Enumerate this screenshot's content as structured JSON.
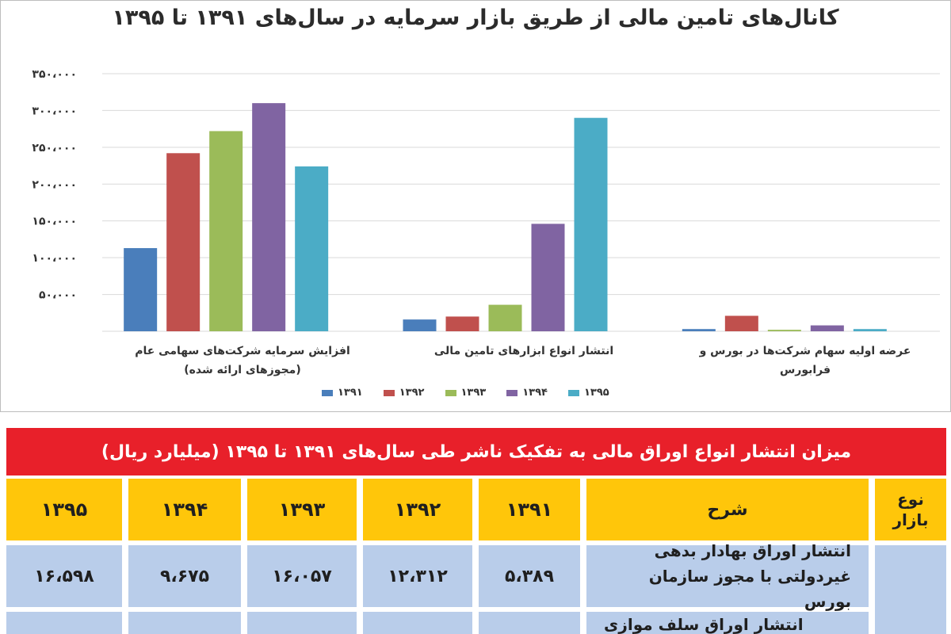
{
  "chart_data": {
    "type": "bar",
    "title": "کانال‌های تامین مالی از طریق بازار سرمایه در سال‌های ۱۳۹۱ تا ۱۳۹۵",
    "categories": [
      "افزایش  سرمایه شرکت‌های سهامی عام (مجوزهای ارائه شده)",
      "انتشار انواع ابزارهای تامین مالی",
      "عرضه اولیه سهام شرکت‌ها در بورس و فرابورس"
    ],
    "series": [
      {
        "name": "۱۳۹۱",
        "color": "#4a7ebb",
        "values": [
          113000,
          16000,
          3000
        ]
      },
      {
        "name": "۱۳۹۲",
        "color": "#c0504d",
        "values": [
          242000,
          20000,
          21000
        ]
      },
      {
        "name": "۱۳۹۳",
        "color": "#9bbb59",
        "values": [
          272000,
          36000,
          2000
        ]
      },
      {
        "name": "۱۳۹۴",
        "color": "#8064a2",
        "values": [
          310000,
          146000,
          8000
        ]
      },
      {
        "name": "۱۳۹۵",
        "color": "#4bacc6",
        "values": [
          224000,
          290000,
          3000
        ]
      }
    ],
    "ylim": [
      0,
      350000
    ],
    "yticks": [
      0,
      50000,
      100000,
      150000,
      200000,
      250000,
      300000,
      350000
    ],
    "ytick_labels": [
      "",
      "۵۰،۰۰۰",
      "۱۰۰،۰۰۰",
      "۱۵۰،۰۰۰",
      "۲۰۰،۰۰۰",
      "۲۵۰،۰۰۰",
      "۳۰۰،۰۰۰",
      "۳۵۰،۰۰۰"
    ],
    "grid": true,
    "legend_position": "bottom"
  },
  "table": {
    "title": "میزان انتشار انواع اوراق مالی به تفکیک ناشر طی سال‌های ۱۳۹۱ تا ۱۳۹۵ (میلیارد ریال)",
    "headers": {
      "market_type": "نوع بازار",
      "description": "شرح",
      "y1391": "۱۳۹۱",
      "y1392": "۱۳۹۲",
      "y1393": "۱۳۹۳",
      "y1394": "۱۳۹۴",
      "y1395": "۱۳۹۵"
    },
    "rows": [
      {
        "description": "انتشار اوراق بهادار بدهی غیردولتی با مجوز سازمان بورس",
        "y1391": "۵،۳۸۹",
        "y1392": "۱۲،۳۱۲",
        "y1393": "۱۶،۰۵۷",
        "y1394": "۹،۶۷۵",
        "y1395": "۱۶،۵۹۸"
      },
      {
        "description": "انتشار اوراق سلف موازی"
      }
    ]
  }
}
